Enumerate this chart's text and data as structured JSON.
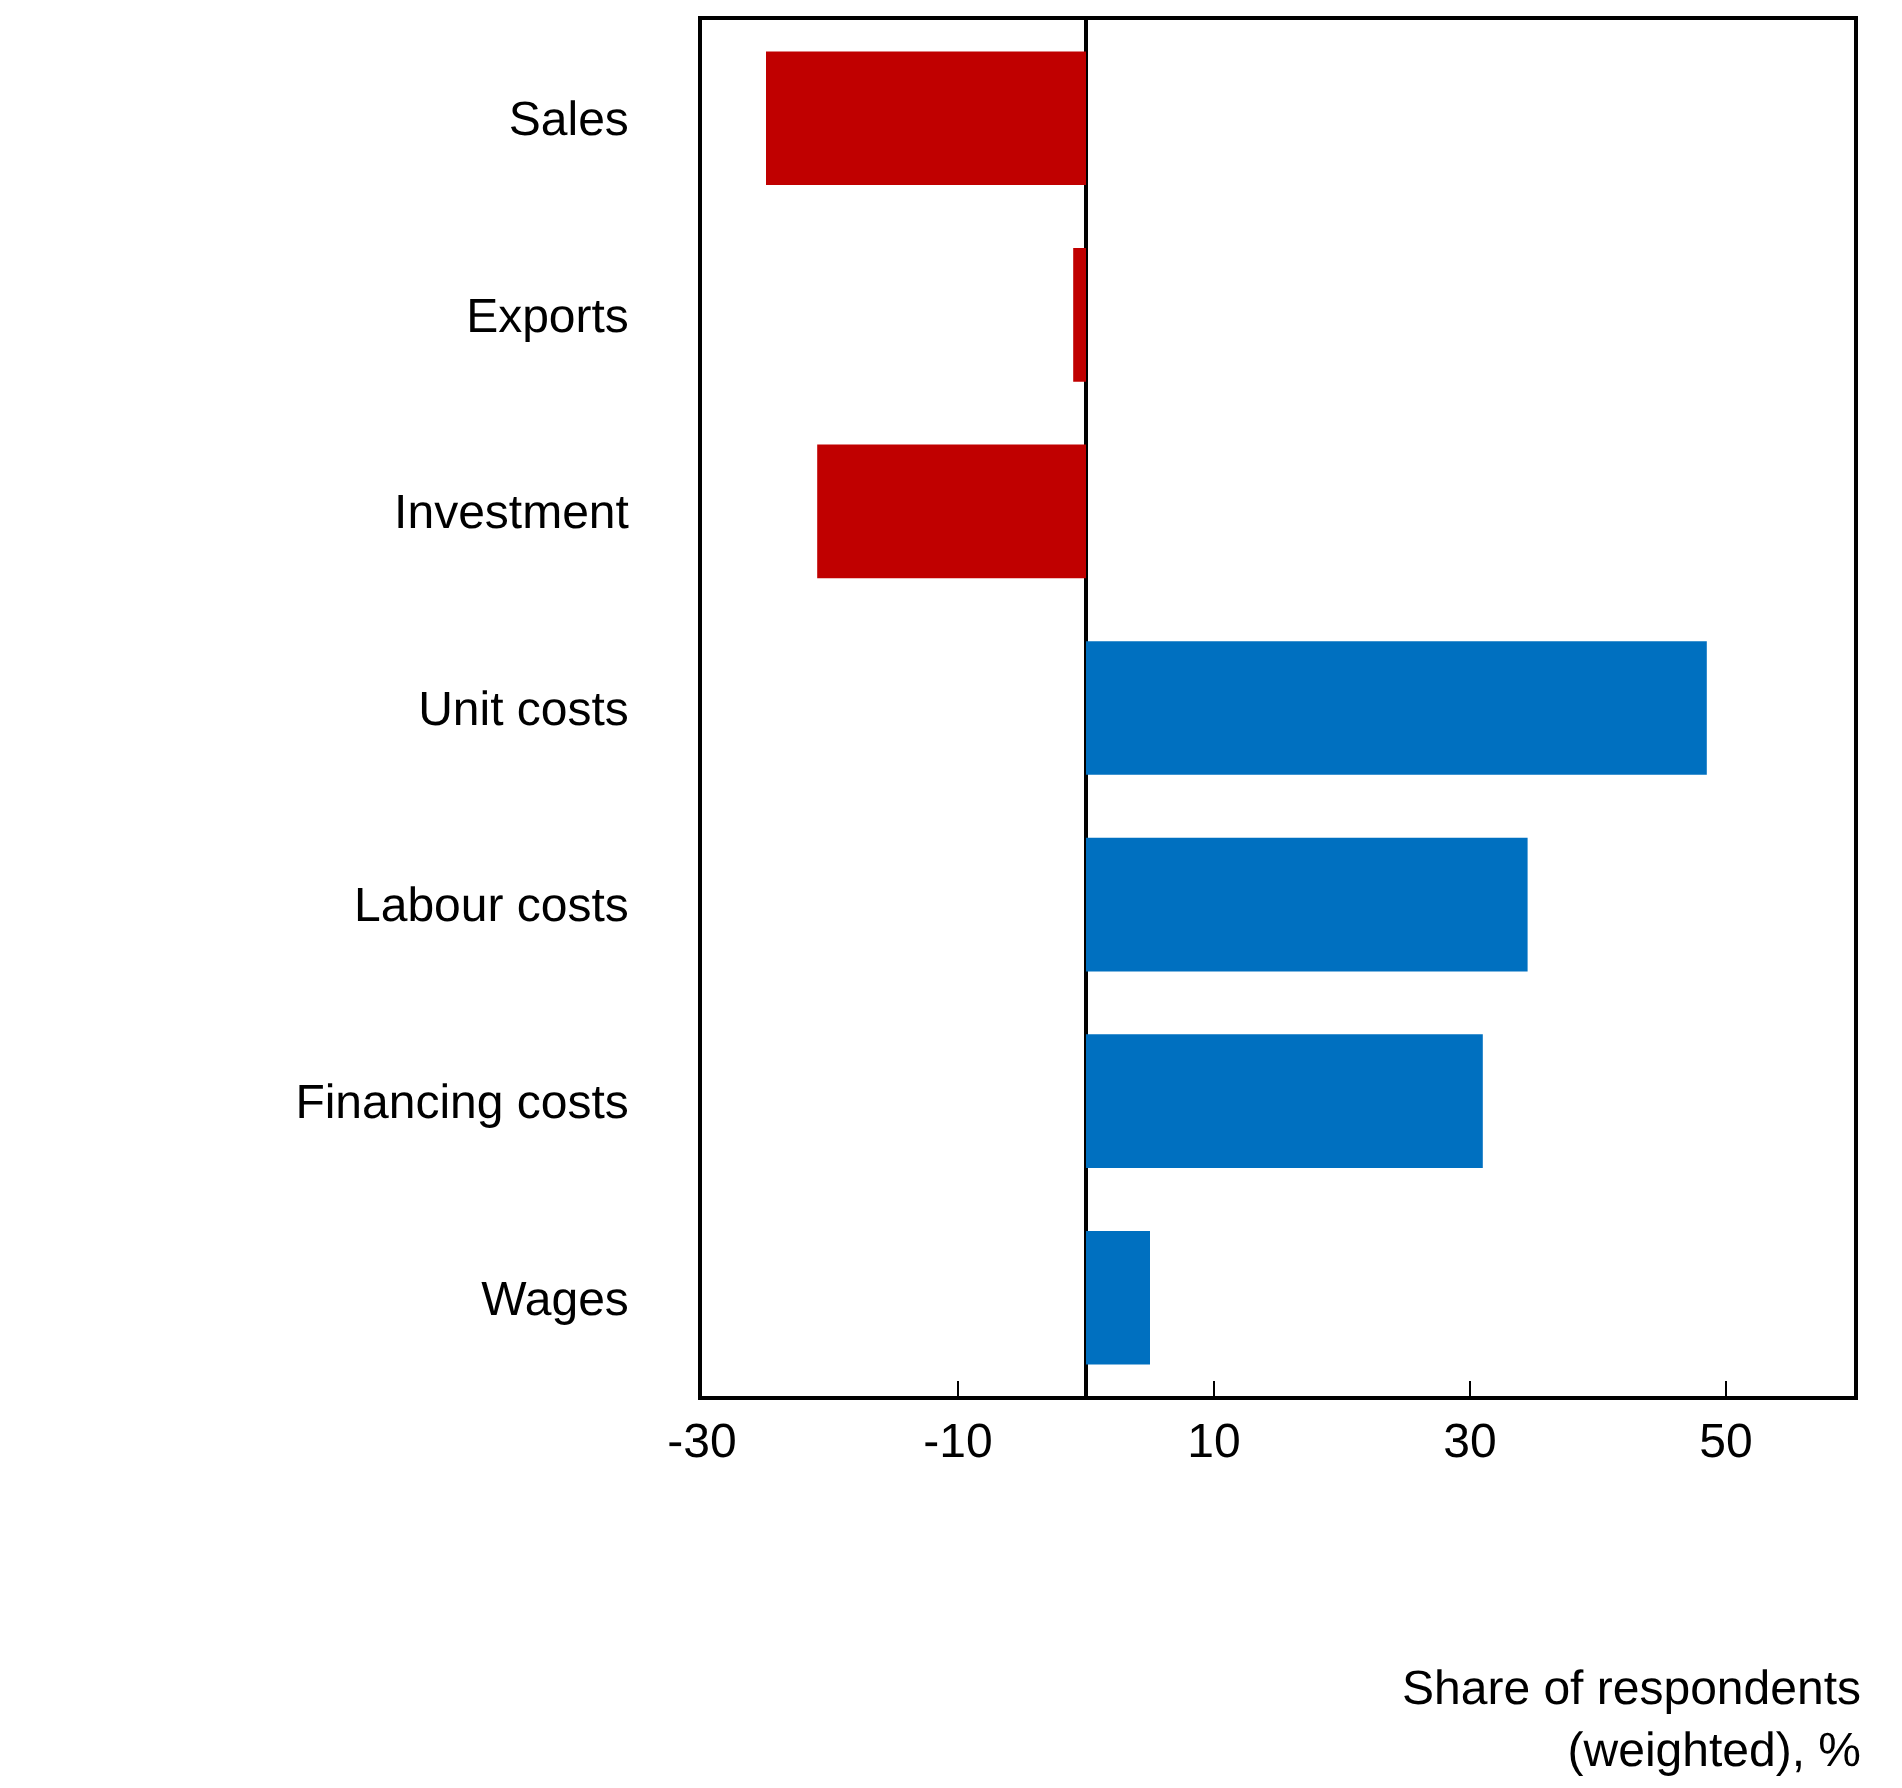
{
  "chart_data": {
    "type": "bar",
    "orientation": "horizontal",
    "categories": [
      "Sales",
      "Exports",
      "Investment",
      "Unit costs",
      "Labour costs",
      "Financing costs",
      "Wages"
    ],
    "values": [
      -25,
      -1,
      -21,
      48.5,
      34.5,
      31,
      5
    ],
    "colors": [
      "#c00000",
      "#c00000",
      "#c00000",
      "#0070c0",
      "#0070c0",
      "#0070c0",
      "#0070c0"
    ],
    "xlabel": "Share of respondents\n(weighted), %",
    "xlim": [
      -30,
      60
    ],
    "xticks": [
      -30,
      -10,
      10,
      30,
      50
    ],
    "grid": false
  }
}
